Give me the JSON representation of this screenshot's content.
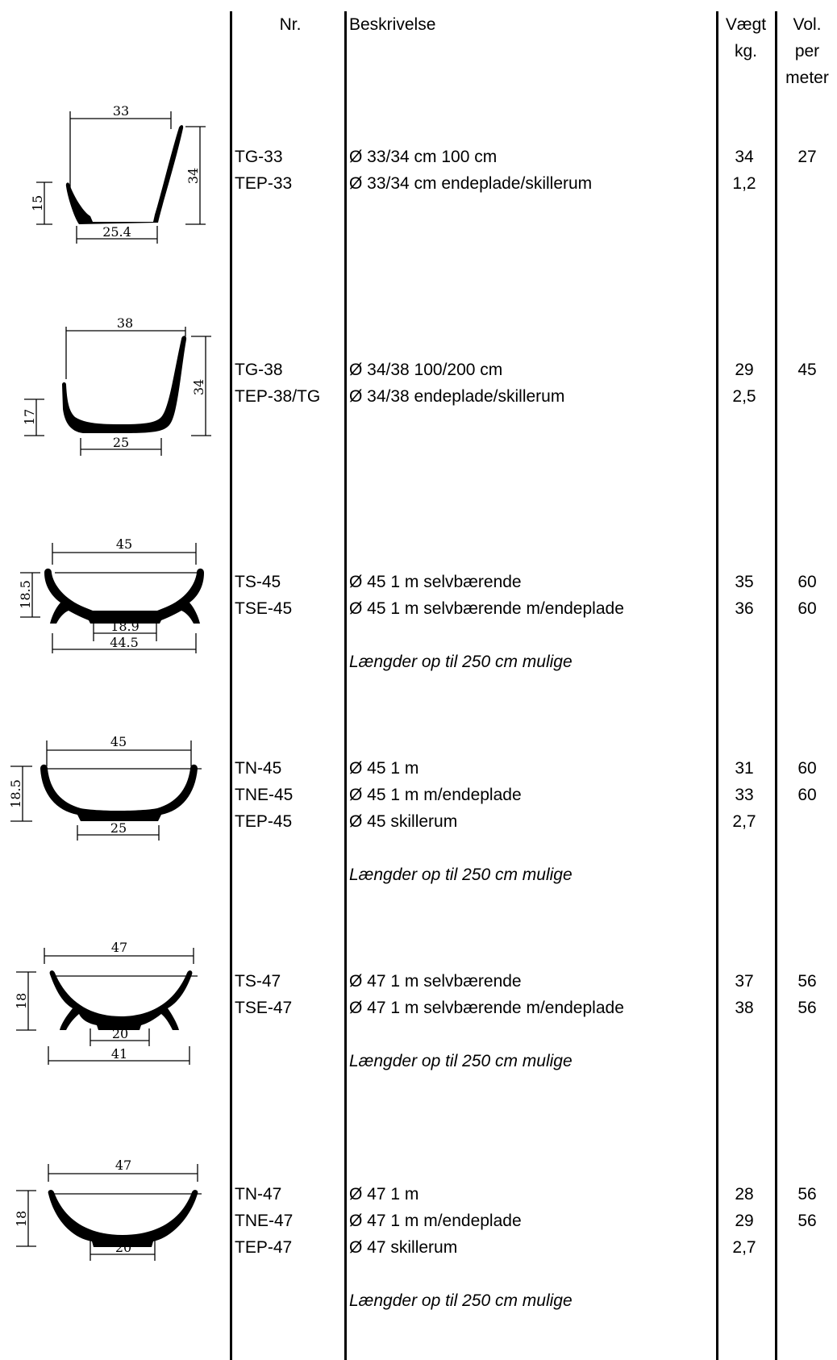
{
  "headers": {
    "nr": "Nr.",
    "beskrivelse": "Beskrivelse",
    "vaegt_1": "Vægt",
    "vaegt_2": "kg.",
    "vol_1": "Vol.",
    "vol_2": "per",
    "vol_3": "meter"
  },
  "note_text": "Længder op til 250 cm mulige",
  "products": [
    {
      "drawing": {
        "width": "33",
        "height_right": "34",
        "height_left": "15",
        "base": "25.4"
      },
      "rows": [
        {
          "nr": "TG-33",
          "desc": "Ø 33/34 cm 100 cm",
          "weight": "34",
          "vol": "27"
        },
        {
          "nr": "TEP-33",
          "desc": "Ø 33/34 cm endeplade/skillerum",
          "weight": "1,2",
          "vol": ""
        }
      ],
      "note": ""
    },
    {
      "drawing": {
        "width": "38",
        "height_right": "34",
        "height_left": "17",
        "base": "25"
      },
      "rows": [
        {
          "nr": "TG-38",
          "desc": "Ø 34/38 100/200 cm",
          "weight": "29",
          "vol": "45"
        },
        {
          "nr": "TEP-38/TG",
          "desc": "Ø 34/38 endeplade/skillerum",
          "weight": "2,5",
          "vol": ""
        }
      ],
      "note": ""
    },
    {
      "drawing": {
        "width": "45",
        "height_left": "18.5",
        "base": "18.9",
        "bottom": "44.5"
      },
      "rows": [
        {
          "nr": "TS-45",
          "desc": "Ø 45 1 m selvbærende",
          "weight": "35",
          "vol": "60"
        },
        {
          "nr": "TSE-45",
          "desc": "Ø 45 1 m selvbærende m/endeplade",
          "weight": "36",
          "vol": "60"
        }
      ],
      "note": "Længder op til 250 cm mulige"
    },
    {
      "drawing": {
        "width": "45",
        "height_left": "18.5",
        "base": "25"
      },
      "rows": [
        {
          "nr": "TN-45",
          "desc": "Ø 45 1 m",
          "weight": "31",
          "vol": "60"
        },
        {
          "nr": "TNE-45",
          "desc": "Ø 45 1 m m/endeplade",
          "weight": "33",
          "vol": "60"
        },
        {
          "nr": "TEP-45",
          "desc": "Ø 45 skillerum",
          "weight": "2,7",
          "vol": ""
        }
      ],
      "note": "Længder op til 250 cm mulige"
    },
    {
      "drawing": {
        "width": "47",
        "height_left": "18",
        "base": "20",
        "bottom": "41"
      },
      "rows": [
        {
          "nr": "TS-47",
          "desc": "Ø 47 1 m selvbærende",
          "weight": "37",
          "vol": "56"
        },
        {
          "nr": "TSE-47",
          "desc": "Ø 47 1 m selvbærende m/endeplade",
          "weight": "38",
          "vol": "56"
        }
      ],
      "note": "Længder op til 250 cm mulige"
    },
    {
      "drawing": {
        "width": "47",
        "height_left": "18",
        "base": "20"
      },
      "rows": [
        {
          "nr": "TN-47",
          "desc": "Ø 47 1 m",
          "weight": "28",
          "vol": "56"
        },
        {
          "nr": "TNE-47",
          "desc": "Ø 47 1 m m/endeplade",
          "weight": "29",
          "vol": "56"
        },
        {
          "nr": "TEP-47",
          "desc": "Ø 47 skillerum",
          "weight": "2,7",
          "vol": ""
        }
      ],
      "note": "Længder op til 250 cm mulige"
    }
  ]
}
